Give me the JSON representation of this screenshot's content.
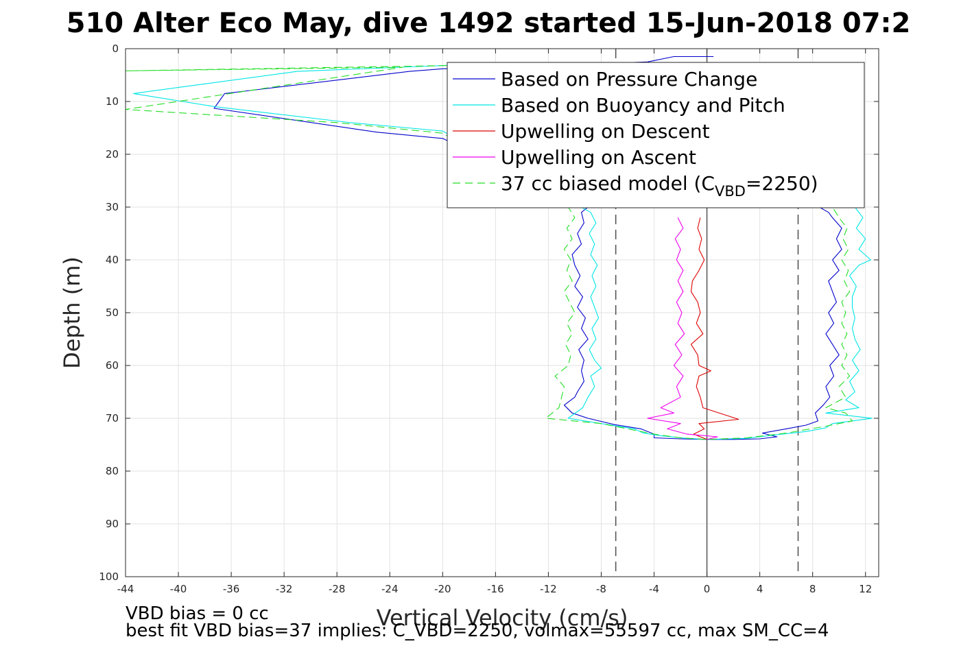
{
  "chart_data": {
    "type": "line",
    "title": "510 Alter Eco May, dive 1492 started 15-Jun-2018 07:2",
    "xlabel": "Vertical Velocity (cm/s)",
    "ylabel": "Depth (m)",
    "xlim": [
      -44,
      13
    ],
    "ylim": [
      0,
      100
    ],
    "y_reversed": true,
    "grid": true,
    "xticks": [
      -44,
      -40,
      -36,
      -32,
      -28,
      -24,
      -20,
      -16,
      -12,
      -8,
      -4,
      0,
      4,
      8,
      12
    ],
    "yticks": [
      0,
      10,
      20,
      30,
      40,
      50,
      60,
      70,
      80,
      90,
      100
    ],
    "legend_position": "top-right",
    "legend": {
      "entries": [
        {
          "label": "Based on Pressure Change",
          "color": "#0000cc",
          "dash": "solid"
        },
        {
          "label": "Based on Buoyancy and Pitch",
          "color": "#00e5e5",
          "dash": "solid"
        },
        {
          "label": "Upwelling on Descent",
          "color": "#dd0000",
          "dash": "solid"
        },
        {
          "label": "Upwelling on Ascent",
          "color": "#ee00ee",
          "dash": "solid"
        },
        {
          "label_main": "37 cc biased model (C",
          "label_sub": "VBD",
          "label_tail": "=2250)",
          "color": "#22dd22",
          "dash": "dashed"
        }
      ]
    },
    "reference_lines": [
      {
        "x": -6.9,
        "style": "dashed",
        "color": "#555555"
      },
      {
        "x": 6.9,
        "style": "dashed",
        "color": "#555555"
      },
      {
        "x": 0,
        "style": "solid",
        "color": "#333333"
      }
    ],
    "series": [
      {
        "name": "Based on Pressure Change",
        "color": "#0000cc",
        "dash": "solid",
        "points": [
          [
            0.5,
            1.5
          ],
          [
            -2.5,
            1.5
          ],
          [
            -4.5,
            2.5
          ],
          [
            -10,
            3
          ],
          [
            -20,
            3.8
          ],
          [
            -22.5,
            4.3
          ],
          [
            -36.5,
            8.5
          ],
          [
            -37.3,
            11.3
          ],
          [
            -25,
            15.8
          ],
          [
            -20,
            17
          ],
          [
            -9,
            30
          ],
          [
            -9.5,
            31
          ],
          [
            -9.3,
            33
          ],
          [
            -9.8,
            35
          ],
          [
            -9.5,
            37
          ],
          [
            -10.2,
            39
          ],
          [
            -10.0,
            41
          ],
          [
            -9.6,
            43
          ],
          [
            -10.0,
            45
          ],
          [
            -9.4,
            47
          ],
          [
            -9.8,
            49
          ],
          [
            -9.2,
            51
          ],
          [
            -9.5,
            53
          ],
          [
            -9.0,
            55
          ],
          [
            -9.7,
            57
          ],
          [
            -9.3,
            59
          ],
          [
            -9.5,
            61
          ],
          [
            -9.3,
            63
          ],
          [
            -9.8,
            65
          ],
          [
            -10.0,
            66
          ],
          [
            -10.8,
            67.5
          ],
          [
            -10.2,
            69
          ],
          [
            -9.0,
            70
          ],
          [
            -7,
            71.2
          ],
          [
            -5,
            72
          ],
          [
            -4.5,
            72.5
          ],
          [
            -4,
            73
          ],
          [
            -4,
            73.7
          ],
          [
            -2,
            73.9
          ],
          [
            0,
            74
          ],
          [
            2,
            74
          ],
          [
            4,
            73.9
          ],
          [
            5.3,
            73.5
          ],
          [
            4.2,
            72.8
          ],
          [
            6,
            72
          ],
          [
            7.5,
            71.3
          ],
          [
            8.4,
            70.5
          ],
          [
            8.2,
            69
          ],
          [
            8.8,
            67.5
          ],
          [
            9.3,
            66
          ],
          [
            9.0,
            64
          ],
          [
            9.6,
            62
          ],
          [
            9.3,
            60
          ],
          [
            10.0,
            58
          ],
          [
            9.5,
            56
          ],
          [
            9.0,
            54
          ],
          [
            9.6,
            52
          ],
          [
            9.2,
            50
          ],
          [
            9.8,
            48
          ],
          [
            9.5,
            46
          ],
          [
            9.2,
            44
          ],
          [
            10.0,
            42
          ],
          [
            9.5,
            40
          ],
          [
            10.2,
            38
          ],
          [
            9.8,
            36
          ],
          [
            10.2,
            34
          ],
          [
            9.5,
            32
          ],
          [
            9.2,
            31
          ],
          [
            8.5,
            30
          ]
        ]
      },
      {
        "name": "Based on Buoyancy and Pitch",
        "color": "#00e5e5",
        "dash": "solid",
        "points": [
          [
            -18,
            3
          ],
          [
            -31,
            4.3
          ],
          [
            -43.4,
            8.5
          ],
          [
            -37.2,
            11
          ],
          [
            -27,
            14
          ],
          [
            -20,
            15.6
          ],
          [
            -8.8,
            31
          ],
          [
            -8.4,
            33
          ],
          [
            -8.9,
            35
          ],
          [
            -8.5,
            37
          ],
          [
            -8.8,
            39
          ],
          [
            -8.3,
            41
          ],
          [
            -8.7,
            43
          ],
          [
            -8.4,
            45
          ],
          [
            -8.8,
            47
          ],
          [
            -8.5,
            49
          ],
          [
            -8.2,
            51
          ],
          [
            -8.7,
            53
          ],
          [
            -8.4,
            55
          ],
          [
            -8.9,
            57
          ],
          [
            -8.5,
            59
          ],
          [
            -8.0,
            60.5
          ],
          [
            -8.8,
            62
          ],
          [
            -8.5,
            64
          ],
          [
            -9.0,
            66
          ],
          [
            -9.4,
            68
          ],
          [
            -10.5,
            70
          ],
          [
            -8,
            71
          ],
          [
            -5.5,
            72
          ],
          [
            -4.8,
            72.8
          ],
          [
            -3.5,
            73.3
          ],
          [
            -1.5,
            73.8
          ],
          [
            0,
            74
          ],
          [
            3,
            73.8
          ],
          [
            5,
            73.2
          ],
          [
            7.5,
            72.5
          ],
          [
            9,
            71.8
          ],
          [
            9.5,
            71
          ],
          [
            12.5,
            70
          ],
          [
            9.0,
            69
          ],
          [
            11.5,
            68
          ],
          [
            10.5,
            66.5
          ],
          [
            11.2,
            65
          ],
          [
            10.8,
            63
          ],
          [
            11.5,
            61
          ],
          [
            11.0,
            59
          ],
          [
            11.6,
            57
          ],
          [
            11.2,
            55
          ],
          [
            11.0,
            53
          ],
          [
            11.2,
            51
          ],
          [
            11.0,
            49
          ],
          [
            11.0,
            47
          ],
          [
            11.3,
            45
          ],
          [
            10.8,
            43
          ],
          [
            11.5,
            41
          ],
          [
            12.4,
            40
          ],
          [
            11.5,
            38
          ],
          [
            12.0,
            36
          ],
          [
            11.3,
            34
          ],
          [
            11.8,
            32
          ],
          [
            11.2,
            30
          ]
        ]
      },
      {
        "name": "Upwelling on Descent",
        "color": "#dd0000",
        "dash": "solid",
        "points": [
          [
            -0.5,
            32
          ],
          [
            -0.7,
            34
          ],
          [
            -0.4,
            36
          ],
          [
            -0.6,
            38
          ],
          [
            -0.2,
            40
          ],
          [
            -0.6,
            42
          ],
          [
            -1.1,
            44
          ],
          [
            -1.2,
            46
          ],
          [
            -0.7,
            48
          ],
          [
            -0.5,
            50
          ],
          [
            -0.8,
            52
          ],
          [
            -0.3,
            54
          ],
          [
            -1.2,
            56
          ],
          [
            -0.7,
            58
          ],
          [
            -0.6,
            60
          ],
          [
            0.3,
            61
          ],
          [
            -0.6,
            62
          ],
          [
            -0.8,
            64
          ],
          [
            -0.5,
            66
          ],
          [
            -0.3,
            68
          ],
          [
            2.4,
            70.2
          ],
          [
            -0.6,
            71
          ],
          [
            -0.2,
            72
          ],
          [
            -1,
            73
          ],
          [
            0,
            74
          ]
        ]
      },
      {
        "name": "Upwelling on Ascent",
        "color": "#ee00ee",
        "dash": "solid",
        "points": [
          [
            -2.2,
            32
          ],
          [
            -1.8,
            34
          ],
          [
            -2.4,
            36
          ],
          [
            -2.0,
            38
          ],
          [
            -2.3,
            40
          ],
          [
            -1.8,
            42
          ],
          [
            -2.2,
            44
          ],
          [
            -1.8,
            46
          ],
          [
            -2.3,
            48
          ],
          [
            -1.9,
            50
          ],
          [
            -2.2,
            52
          ],
          [
            -1.7,
            54
          ],
          [
            -2.4,
            56
          ],
          [
            -1.9,
            58
          ],
          [
            -2.5,
            60
          ],
          [
            -1.8,
            62
          ],
          [
            -2.3,
            64
          ],
          [
            -2.0,
            66
          ],
          [
            -3.5,
            68
          ],
          [
            -2.5,
            69
          ],
          [
            -4.5,
            70
          ],
          [
            -2.0,
            71
          ],
          [
            -3.0,
            72
          ],
          [
            -1.5,
            73
          ],
          [
            0.8,
            73.5
          ],
          [
            0,
            74
          ]
        ]
      },
      {
        "name": "37 cc biased model (CVBD=2250)",
        "color": "#22dd22",
        "dash": "dashed",
        "points": [
          [
            -10,
            2.8
          ],
          [
            -44,
            4.2
          ],
          [
            -23,
            3.5
          ],
          [
            -44,
            11.5
          ],
          [
            -28,
            14
          ],
          [
            -20,
            16
          ],
          [
            -10.5,
            30
          ],
          [
            -10.0,
            32
          ],
          [
            -10.6,
            34
          ],
          [
            -10.2,
            36
          ],
          [
            -10.8,
            38
          ],
          [
            -10.3,
            40
          ],
          [
            -10.6,
            42
          ],
          [
            -10.2,
            44
          ],
          [
            -10.8,
            46
          ],
          [
            -10.4,
            48
          ],
          [
            -10.0,
            50
          ],
          [
            -10.6,
            52
          ],
          [
            -10.2,
            54
          ],
          [
            -10.7,
            56
          ],
          [
            -10.3,
            58
          ],
          [
            -10.5,
            60
          ],
          [
            -11.5,
            62
          ],
          [
            -10.8,
            64
          ],
          [
            -11.0,
            66
          ],
          [
            -11.2,
            68
          ],
          [
            -12.2,
            70
          ],
          [
            -8,
            71
          ],
          [
            -6,
            72
          ],
          [
            -4,
            73
          ],
          [
            -2,
            73.7
          ],
          [
            0,
            74
          ],
          [
            3,
            73.7
          ],
          [
            6,
            72.8
          ],
          [
            9,
            71.5
          ],
          [
            11.0,
            70.5
          ],
          [
            10.5,
            69
          ],
          [
            9.0,
            68
          ],
          [
            10.5,
            66
          ],
          [
            10.0,
            64
          ],
          [
            10.8,
            62
          ],
          [
            10.2,
            60
          ],
          [
            10.6,
            58
          ],
          [
            10.2,
            56
          ],
          [
            10.6,
            54
          ],
          [
            10.2,
            52
          ],
          [
            10.5,
            50
          ],
          [
            10.2,
            48
          ],
          [
            10.8,
            46
          ],
          [
            10.4,
            44
          ],
          [
            10.7,
            42
          ],
          [
            10.2,
            40
          ],
          [
            10.7,
            38
          ],
          [
            10.3,
            36
          ],
          [
            10.6,
            34
          ],
          [
            10.0,
            32
          ],
          [
            9.5,
            30
          ]
        ]
      }
    ]
  },
  "notes": {
    "line1": "VBD bias = 0 cc",
    "line2": "best fit VBD bias=37 implies: C_VBD=2250, volmax=55597 cc, max SM_CC=4"
  }
}
